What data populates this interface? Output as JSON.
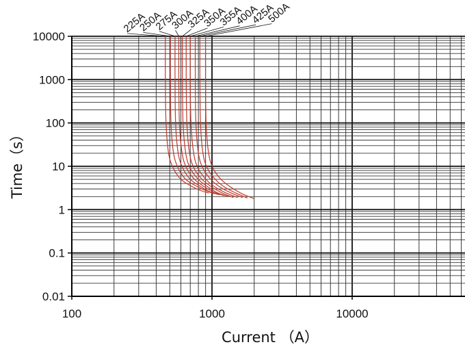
{
  "chart_data": {
    "type": "line",
    "title": "",
    "xlabel": "Current （A）",
    "ylabel": "Time（s）",
    "x_scale": "log",
    "y_scale": "log",
    "xlim": [
      100,
      50000
    ],
    "ylim": [
      0.01,
      10000
    ],
    "grid": true,
    "x_ticks": [
      {
        "value": 100,
        "label": "100"
      },
      {
        "value": 1000,
        "label": "1000"
      },
      {
        "value": 10000,
        "label": "10000"
      }
    ],
    "y_ticks": [
      {
        "value": 10000,
        "label": "10000"
      },
      {
        "value": 1000,
        "label": "1000"
      },
      {
        "value": 100,
        "label": "100"
      },
      {
        "value": 10,
        "label": "10"
      },
      {
        "value": 1,
        "label": "1"
      },
      {
        "value": 0.1,
        "label": "0.1"
      },
      {
        "value": 0.01,
        "label": "0.01"
      }
    ],
    "series_color": "#c0392b",
    "series": [
      {
        "name": "225A",
        "points": [
          [
            465,
            10000
          ],
          [
            465,
            1000
          ],
          [
            470,
            100
          ],
          [
            490,
            20
          ],
          [
            530,
            9
          ],
          [
            600,
            5
          ],
          [
            700,
            3.6
          ],
          [
            820,
            2.8
          ],
          [
            950,
            2.4
          ]
        ]
      },
      {
        "name": "250A",
        "points": [
          [
            505,
            10000
          ],
          [
            505,
            1000
          ],
          [
            510,
            100
          ],
          [
            532,
            20
          ],
          [
            575,
            9
          ],
          [
            650,
            5
          ],
          [
            760,
            3.6
          ],
          [
            890,
            2.8
          ],
          [
            1040,
            2.3
          ]
        ]
      },
      {
        "name": "275A",
        "points": [
          [
            545,
            10000
          ],
          [
            545,
            1000
          ],
          [
            550,
            100
          ],
          [
            574,
            20
          ],
          [
            620,
            9
          ],
          [
            700,
            5
          ],
          [
            820,
            3.5
          ],
          [
            960,
            2.6
          ],
          [
            1130,
            2.2
          ]
        ]
      },
      {
        "name": "300A",
        "points": [
          [
            580,
            10000
          ],
          [
            580,
            1000
          ],
          [
            586,
            100
          ],
          [
            612,
            20
          ],
          [
            660,
            9
          ],
          [
            750,
            5
          ],
          [
            880,
            3.4
          ],
          [
            1040,
            2.5
          ],
          [
            1220,
            2.1
          ]
        ]
      },
      {
        "name": "325A",
        "points": [
          [
            615,
            10000
          ],
          [
            615,
            1000
          ],
          [
            622,
            100
          ],
          [
            650,
            20
          ],
          [
            700,
            9
          ],
          [
            800,
            5
          ],
          [
            940,
            3.3
          ],
          [
            1110,
            2.4
          ],
          [
            1310,
            2
          ]
        ]
      },
      {
        "name": "350A",
        "points": [
          [
            655,
            10000
          ],
          [
            655,
            1000
          ],
          [
            662,
            100
          ],
          [
            692,
            20
          ],
          [
            745,
            9
          ],
          [
            850,
            5
          ],
          [
            1000,
            3.3
          ],
          [
            1190,
            2.4
          ],
          [
            1420,
            1.9
          ]
        ]
      },
      {
        "name": "355A",
        "points": [
          [
            700,
            10000
          ],
          [
            700,
            1000
          ],
          [
            708,
            100
          ],
          [
            740,
            20
          ],
          [
            796,
            9
          ],
          [
            905,
            5
          ],
          [
            1070,
            3.2
          ],
          [
            1270,
            2.4
          ],
          [
            1520,
            1.9
          ]
        ]
      },
      {
        "name": "400A",
        "points": [
          [
            760,
            10000
          ],
          [
            760,
            1000
          ],
          [
            768,
            100
          ],
          [
            800,
            20
          ],
          [
            862,
            9
          ],
          [
            980,
            5
          ],
          [
            1160,
            3.2
          ],
          [
            1380,
            2.4
          ],
          [
            1650,
            1.9
          ]
        ]
      },
      {
        "name": "425A",
        "points": [
          [
            820,
            10000
          ],
          [
            820,
            1000
          ],
          [
            828,
            100
          ],
          [
            862,
            20
          ],
          [
            928,
            9
          ],
          [
            1055,
            5
          ],
          [
            1250,
            3.2
          ],
          [
            1490,
            2.4
          ],
          [
            1790,
            1.85
          ]
        ]
      },
      {
        "name": "500A",
        "points": [
          [
            900,
            10000
          ],
          [
            900,
            1000
          ],
          [
            908,
            100
          ],
          [
            946,
            20
          ],
          [
            1018,
            9
          ],
          [
            1160,
            5
          ],
          [
            1380,
            3.2
          ],
          [
            1650,
            2.3
          ],
          [
            1990,
            1.8
          ]
        ]
      }
    ]
  }
}
